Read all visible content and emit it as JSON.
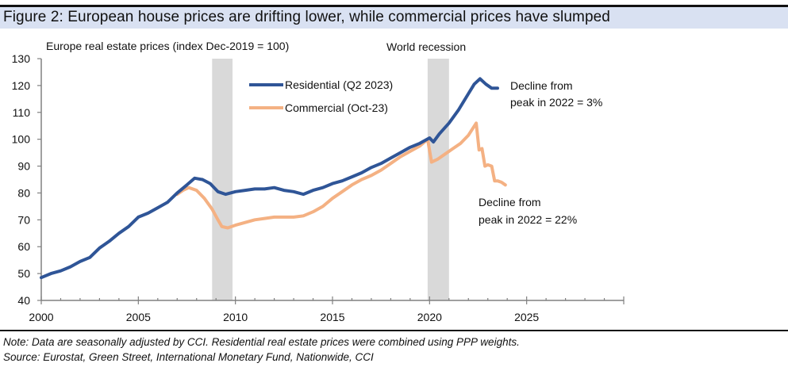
{
  "figure": {
    "title": "Figure 2: European house prices are drifting lower, while commercial prices have slumped",
    "note": "Note: Data are seasonally adjusted by CCI.  Residential real estate prices were combined using PPP weights.",
    "source": "Source: Eurostat, Green Street, International Monetary Fund, Nationwide, CCI"
  },
  "colors": {
    "residential": "#2f5597",
    "commercial": "#f4b183",
    "recession": "#d9d9d9",
    "axis": "#808080",
    "title_bg": "#d9e1f2"
  },
  "chart_data": {
    "type": "line",
    "title": "Europe real estate prices (index Dec-2019 = 100)",
    "xlabel": "",
    "ylabel": "Europe real estate prices (index Dec-2019 = 100)",
    "xlim": [
      2000,
      2030
    ],
    "ylim": [
      40,
      130
    ],
    "x_ticks": [
      "2000",
      "2005",
      "2010",
      "2015",
      "2020",
      "2025"
    ],
    "x_tick_values": [
      2000,
      2005,
      2010,
      2015,
      2020,
      2025
    ],
    "y_ticks": [
      "40",
      "50",
      "60",
      "70",
      "80",
      "90",
      "100",
      "110",
      "120",
      "130"
    ],
    "y_tick_values": [
      40,
      50,
      60,
      70,
      80,
      90,
      100,
      110,
      120,
      130
    ],
    "grid": false,
    "legend": {
      "position": "top-center",
      "entries": [
        "Residential (Q2 2023)",
        "Commercial (Oct-23)"
      ]
    },
    "shaded_periods": [
      {
        "label": "",
        "start": 2008.8,
        "end": 2009.85
      },
      {
        "label": "World recession",
        "start": 2019.9,
        "end": 2021.0
      }
    ],
    "annotations": [
      {
        "text": "World recession",
        "x": 2020.4,
        "y": 130
      },
      {
        "text": "Decline from peak in 2022 = 3%",
        "series": "Residential (Q2 2023)"
      },
      {
        "text": "Decline from peak in 2022 = 22%",
        "series": "Commercial (Oct-23)"
      }
    ],
    "series": [
      {
        "name": "Residential (Q2 2023)",
        "color": "#2f5597",
        "x": [
          2000.0,
          2000.5,
          2001.0,
          2001.5,
          2002.0,
          2002.5,
          2003.0,
          2003.5,
          2004.0,
          2004.5,
          2005.0,
          2005.5,
          2006.0,
          2006.5,
          2007.0,
          2007.5,
          2007.9,
          2008.3,
          2008.7,
          2009.1,
          2009.5,
          2010.0,
          2010.5,
          2011.0,
          2011.5,
          2012.0,
          2012.5,
          2013.0,
          2013.5,
          2014.0,
          2014.5,
          2015.0,
          2015.5,
          2016.0,
          2016.5,
          2017.0,
          2017.5,
          2018.0,
          2018.5,
          2019.0,
          2019.5,
          2020.0,
          2020.2,
          2020.5,
          2021.0,
          2021.5,
          2022.0,
          2022.3,
          2022.6,
          2022.9,
          2023.2,
          2023.5
        ],
        "values": [
          48.5,
          50.0,
          51.0,
          52.5,
          54.5,
          56.0,
          59.5,
          62.0,
          65.0,
          67.5,
          71.0,
          72.5,
          74.5,
          76.5,
          80.0,
          83.0,
          85.5,
          85.0,
          83.5,
          80.5,
          79.5,
          80.5,
          81.0,
          81.5,
          81.5,
          82.0,
          81.0,
          80.5,
          79.5,
          81.0,
          82.0,
          83.5,
          84.5,
          86.0,
          87.5,
          89.5,
          91.0,
          93.0,
          95.0,
          97.0,
          98.5,
          100.5,
          99.0,
          102.0,
          106.0,
          111.0,
          117.0,
          120.5,
          122.5,
          120.5,
          119.0,
          119.0
        ]
      },
      {
        "name": "Commercial (Oct-23)",
        "color": "#f4b183",
        "x": [
          2007.0,
          2007.3,
          2007.6,
          2008.0,
          2008.4,
          2008.8,
          2009.1,
          2009.3,
          2009.6,
          2010.0,
          2010.5,
          2011.0,
          2011.5,
          2012.0,
          2012.5,
          2013.0,
          2013.5,
          2014.0,
          2014.5,
          2015.0,
          2015.5,
          2016.0,
          2016.5,
          2017.0,
          2017.5,
          2018.0,
          2018.5,
          2019.0,
          2019.5,
          2019.9,
          2020.1,
          2020.4,
          2020.8,
          2021.2,
          2021.6,
          2022.0,
          2022.4,
          2022.55,
          2022.7,
          2022.85,
          2023.0,
          2023.2,
          2023.35,
          2023.5,
          2023.7,
          2023.9
        ],
        "values": [
          79.5,
          81.0,
          82.0,
          81.0,
          78.0,
          74.0,
          70.0,
          67.5,
          67.0,
          68.0,
          69.0,
          70.0,
          70.5,
          71.0,
          71.0,
          71.0,
          71.5,
          73.0,
          75.0,
          78.0,
          80.5,
          83.0,
          85.0,
          86.5,
          88.5,
          91.0,
          93.5,
          95.5,
          97.5,
          100.0,
          91.5,
          92.5,
          94.5,
          96.5,
          98.5,
          101.5,
          106.0,
          96.0,
          96.5,
          90.0,
          90.5,
          90.0,
          84.5,
          84.5,
          84.0,
          83.0
        ]
      }
    ]
  }
}
